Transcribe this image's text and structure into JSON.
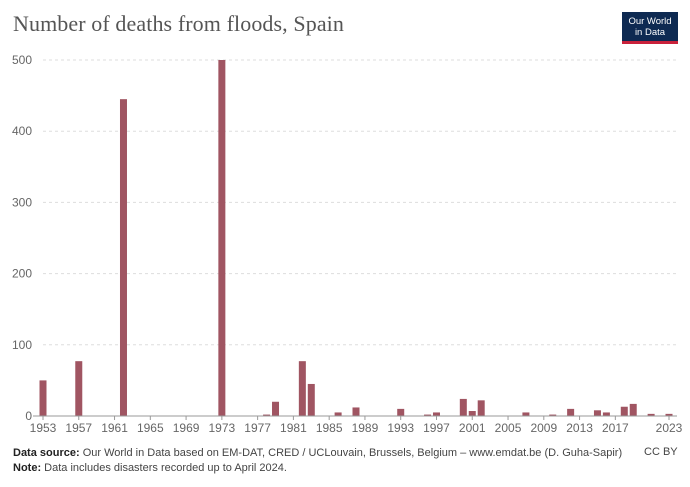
{
  "title": "Number of deaths from floods, Spain",
  "logo": {
    "line1": "Our World",
    "line2": "in Data"
  },
  "footer": {
    "source_label": "Data source:",
    "source_text": "Our World in Data based on EM-DAT, CRED / UCLouvain, Brussels, Belgium – www.emdat.be (D. Guha-Sapir)",
    "note_label": "Note:",
    "note_text": "Data includes disasters recorded up to April 2024.",
    "license": "CC BY"
  },
  "colors": {
    "bar": "#a05562",
    "grid": "#dddddd",
    "axis": "#999999",
    "text": "#666666"
  },
  "chart_data": {
    "type": "bar",
    "title": "Number of deaths from floods, Spain",
    "xlabel": "",
    "ylabel": "",
    "xlim": [
      1953,
      2023
    ],
    "ylim": [
      0,
      500
    ],
    "yticks": [
      0,
      100,
      200,
      300,
      400,
      500
    ],
    "xticks": [
      "1953",
      "1957",
      "1961",
      "1965",
      "1969",
      "1973",
      "1977",
      "1981",
      "1985",
      "1989",
      "1993",
      "1997",
      "2001",
      "2005",
      "2009",
      "2013",
      "2017",
      "2023"
    ],
    "grid": true,
    "x": [
      1953,
      1957,
      1962,
      1973,
      1978,
      1979,
      1982,
      1983,
      1986,
      1988,
      1993,
      1996,
      1997,
      2000,
      2001,
      2002,
      2007,
      2010,
      2012,
      2015,
      2016,
      2018,
      2019,
      2021,
      2023
    ],
    "values": [
      50,
      77,
      445,
      500,
      2,
      20,
      77,
      45,
      5,
      12,
      10,
      2,
      5,
      24,
      7,
      22,
      5,
      2,
      10,
      8,
      5,
      13,
      17,
      3,
      3
    ]
  }
}
